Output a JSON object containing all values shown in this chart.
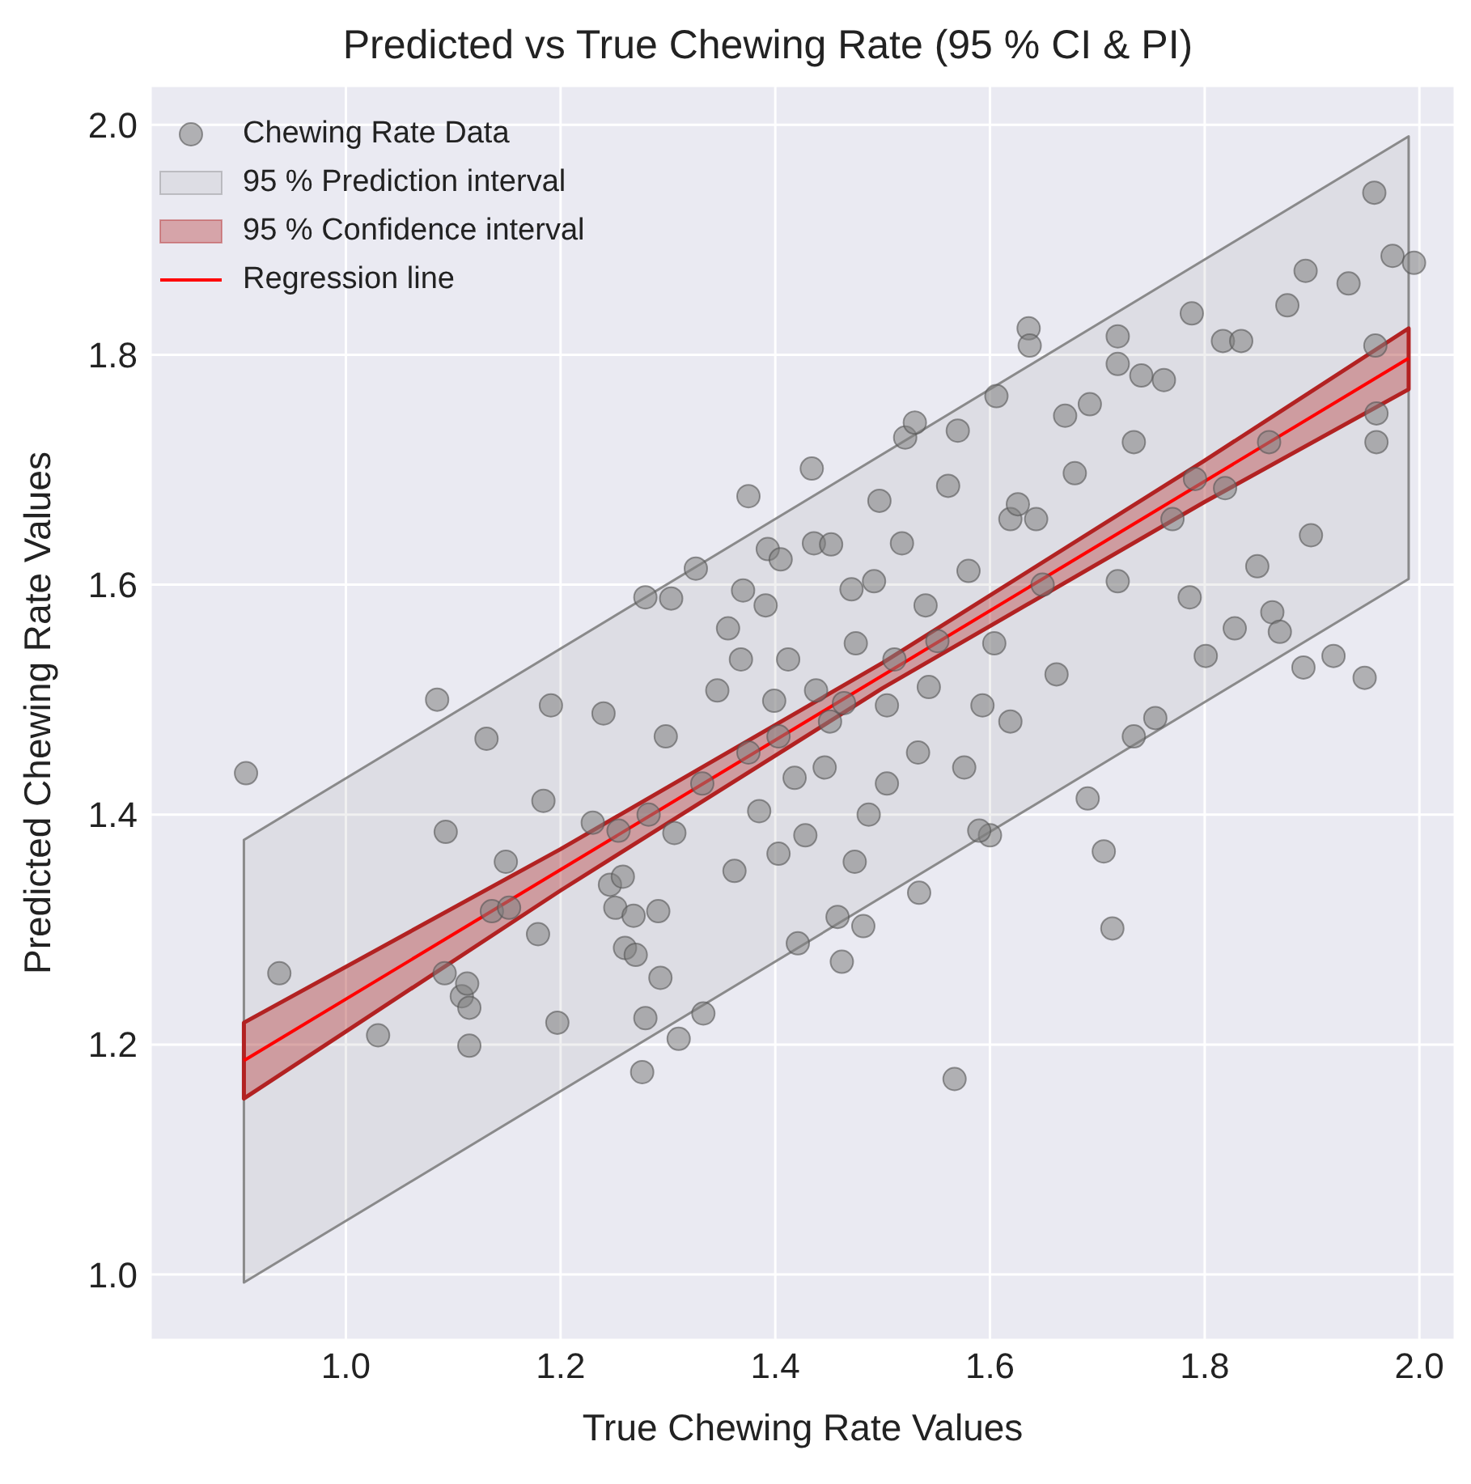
{
  "chart_data": {
    "type": "scatter",
    "title": "Predicted vs True Chewing Rate (95 % CI & PI)",
    "xlabel": "True Chewing Rate Values",
    "ylabel": "Predicted Chewing Rate Values",
    "xlim": [
      0.818,
      2.033
    ],
    "ylim": [
      0.943,
      2.034
    ],
    "xticks": [
      {
        "value": 1,
        "label": "1.0"
      },
      1.2,
      1.4,
      1.6,
      1.8,
      {
        "value": 2,
        "label": "2.0"
      }
    ],
    "yticks": [
      {
        "value": 1,
        "label": "1.0"
      },
      1.2,
      1.4,
      1.6,
      1.8,
      {
        "value": 2,
        "label": "2.0"
      }
    ],
    "grid": true,
    "legend": "top left",
    "series": [
      {
        "name": "Chewing Rate Data",
        "marker": "circle",
        "color": "#808080",
        "x": [
          0.907,
          0.938,
          1.03,
          1.085,
          1.093,
          1.092,
          1.108,
          1.113,
          1.115,
          1.115,
          1.131,
          1.136,
          1.149,
          1.152,
          1.179,
          1.184,
          1.191,
          1.197,
          1.23,
          1.24,
          1.246,
          1.251,
          1.254,
          1.258,
          1.26,
          1.268,
          1.27,
          1.276,
          1.279,
          1.279,
          1.282,
          1.291,
          1.293,
          1.298,
          1.303,
          1.31,
          1.306,
          1.326,
          1.332,
          1.333,
          1.346,
          1.356,
          1.362,
          1.368,
          1.37,
          1.375,
          1.385,
          1.391,
          1.393,
          1.399,
          1.403,
          1.405,
          1.412,
          1.418,
          1.421,
          1.428,
          1.434,
          1.436,
          1.438,
          1.451,
          1.452,
          1.458,
          1.462,
          1.464,
          1.471,
          1.474,
          1.475,
          1.482,
          1.487,
          1.492,
          1.497,
          1.504,
          1.511,
          1.518,
          1.521,
          1.53,
          1.534,
          1.54,
          1.543,
          1.551,
          1.561,
          1.567,
          1.57,
          1.576,
          1.58,
          1.593,
          1.6,
          1.606,
          1.619,
          1.626,
          1.636,
          1.637,
          1.643,
          1.649,
          1.67,
          1.691,
          1.693,
          1.706,
          1.714,
          1.719,
          1.719,
          1.741,
          1.754,
          1.762,
          1.788,
          1.801,
          1.817,
          1.828,
          1.834,
          1.86,
          1.877,
          1.894,
          1.934,
          1.958,
          1.959,
          1.975,
          1.995,
          1.96,
          1.96,
          1.849,
          1.863,
          1.87,
          1.892,
          1.92,
          1.949,
          1.899,
          1.791,
          1.819,
          1.734,
          1.786,
          1.679,
          1.662,
          1.619,
          1.604,
          1.533,
          1.504,
          1.446,
          1.403,
          1.375,
          1.59,
          1.734,
          1.77,
          1.719
        ],
        "values": [
          1.436,
          1.262,
          1.208,
          1.5,
          1.385,
          1.262,
          1.242,
          1.253,
          1.232,
          1.199,
          1.466,
          1.316,
          1.359,
          1.319,
          1.296,
          1.412,
          1.495,
          1.219,
          1.393,
          1.488,
          1.339,
          1.319,
          1.386,
          1.346,
          1.284,
          1.312,
          1.278,
          1.176,
          1.223,
          1.589,
          1.4,
          1.316,
          1.258,
          1.468,
          1.588,
          1.205,
          1.384,
          1.614,
          1.427,
          1.227,
          1.508,
          1.562,
          1.351,
          1.535,
          1.595,
          1.677,
          1.403,
          1.582,
          1.631,
          1.499,
          1.366,
          1.622,
          1.535,
          1.432,
          1.288,
          1.382,
          1.701,
          1.636,
          1.508,
          1.481,
          1.635,
          1.311,
          1.272,
          1.497,
          1.596,
          1.359,
          1.549,
          1.303,
          1.4,
          1.603,
          1.673,
          1.495,
          1.535,
          1.636,
          1.728,
          1.741,
          1.332,
          1.582,
          1.511,
          1.551,
          1.686,
          1.17,
          1.734,
          1.441,
          1.612,
          1.495,
          1.382,
          1.764,
          1.657,
          1.67,
          1.823,
          1.808,
          1.657,
          1.6,
          1.747,
          1.414,
          1.757,
          1.368,
          1.301,
          1.816,
          1.792,
          1.782,
          1.484,
          1.778,
          1.836,
          1.538,
          1.812,
          1.562,
          1.812,
          1.724,
          1.843,
          1.873,
          1.862,
          1.941,
          1.808,
          1.886,
          1.88,
          1.749,
          1.724,
          1.616,
          1.576,
          1.559,
          1.528,
          1.538,
          1.519,
          1.643,
          1.692,
          1.684,
          1.724,
          1.589,
          1.697,
          1.522,
          1.481,
          1.549,
          1.454,
          1.427,
          1.441,
          1.468,
          1.454,
          1.386,
          1.468,
          1.657,
          1.603
        ]
      },
      {
        "name": "95 % Prediction interval",
        "type": "area",
        "color": "#808080",
        "x": [
          0.905,
          1.99
        ],
        "values": [
          null,
          null
        ],
        "lower": [
          0.993,
          1.605
        ],
        "upper": [
          1.378,
          1.99
        ]
      },
      {
        "name": "95 % Confidence interval",
        "type": "area",
        "color": "#b22222",
        "x": [
          0.905,
          1.2,
          1.5,
          1.8,
          1.99
        ],
        "values": [
          null,
          null,
          null,
          null,
          null
        ],
        "lower": [
          1.153,
          1.334,
          1.51,
          1.672,
          1.77
        ],
        "upper": [
          1.219,
          1.37,
          1.532,
          1.708,
          1.823
        ]
      },
      {
        "name": "Regression line",
        "type": "line",
        "color": "#ff0000",
        "x": [
          0.905,
          1.99
        ],
        "values": [
          1.186,
          1.797
        ]
      }
    ]
  }
}
